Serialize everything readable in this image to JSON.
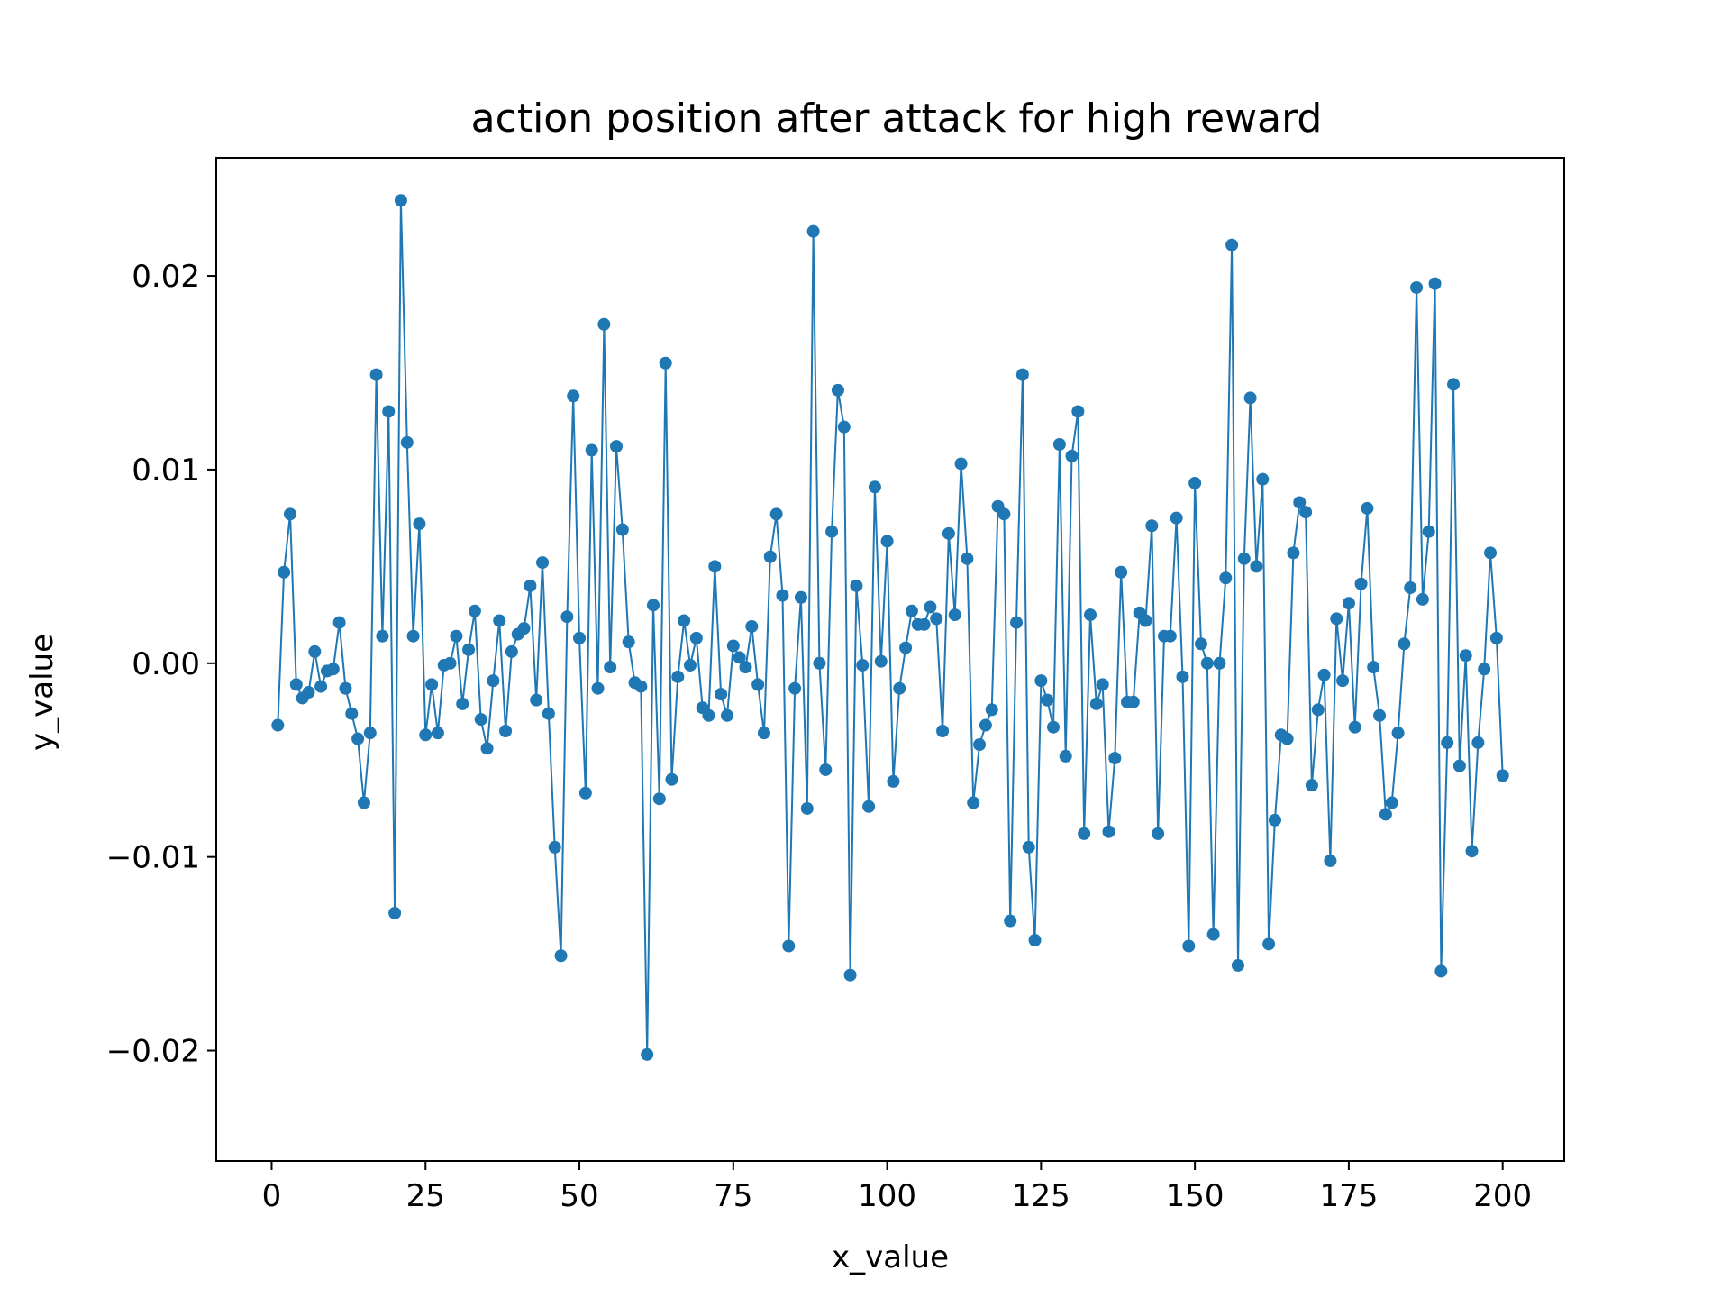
{
  "chart_data": {
    "type": "line",
    "title": "action position after attack for high reward",
    "xlabel": "x_value",
    "ylabel": "y_value",
    "xlim": [
      -9,
      210
    ],
    "ylim": [
      -0.0257,
      0.0261
    ],
    "xticks": [
      0,
      25,
      50,
      75,
      100,
      125,
      150,
      175,
      200
    ],
    "xtick_labels": [
      "0",
      "25",
      "50",
      "75",
      "100",
      "125",
      "150",
      "175",
      "200"
    ],
    "yticks": [
      -0.02,
      -0.01,
      0.0,
      0.01,
      0.02
    ],
    "ytick_labels": [
      "−0.02",
      "−0.01",
      "0.00",
      "0.01",
      "0.02"
    ],
    "grid": false,
    "legend": "none",
    "line_color": "#1f77b4",
    "marker": "circle",
    "x": [
      1,
      2,
      3,
      4,
      5,
      6,
      7,
      8,
      9,
      10,
      11,
      12,
      13,
      14,
      15,
      16,
      17,
      18,
      19,
      20,
      21,
      22,
      23,
      24,
      25,
      26,
      27,
      28,
      29,
      30,
      31,
      32,
      33,
      34,
      35,
      36,
      37,
      38,
      39,
      40,
      41,
      42,
      43,
      44,
      45,
      46,
      47,
      48,
      49,
      50,
      51,
      52,
      53,
      54,
      55,
      56,
      57,
      58,
      59,
      60,
      61,
      62,
      63,
      64,
      65,
      66,
      67,
      68,
      69,
      70,
      71,
      72,
      73,
      74,
      75,
      76,
      77,
      78,
      79,
      80,
      81,
      82,
      83,
      84,
      85,
      86,
      87,
      88,
      89,
      90,
      91,
      92,
      93,
      94,
      95,
      96,
      97,
      98,
      99,
      100,
      101,
      102,
      103,
      104,
      105,
      106,
      107,
      108,
      109,
      110,
      111,
      112,
      113,
      114,
      115,
      116,
      117,
      118,
      119,
      120,
      121,
      122,
      123,
      124,
      125,
      126,
      127,
      128,
      129,
      130,
      131,
      132,
      133,
      134,
      135,
      136,
      137,
      138,
      139,
      140,
      141,
      142,
      143,
      144,
      145,
      146,
      147,
      148,
      149,
      150,
      151,
      152,
      153,
      154,
      155,
      156,
      157,
      158,
      159,
      160,
      161,
      162,
      163,
      164,
      165,
      166,
      167,
      168,
      169,
      170,
      171,
      172,
      173,
      174,
      175,
      176,
      177,
      178,
      179,
      180,
      181,
      182,
      183,
      184,
      185,
      186,
      187,
      188,
      189,
      190,
      191,
      192,
      193,
      194,
      195,
      196,
      197,
      198,
      199,
      200
    ],
    "y": [
      -0.0032,
      0.0047,
      0.0077,
      -0.0011,
      -0.0018,
      -0.0015,
      0.0006,
      -0.0012,
      -0.0004,
      -0.0003,
      0.0021,
      -0.0013,
      -0.0026,
      -0.0039,
      -0.0072,
      -0.0036,
      0.0149,
      0.0014,
      0.013,
      -0.0129,
      0.0239,
      0.0114,
      0.0014,
      0.0072,
      -0.0037,
      -0.0011,
      -0.0036,
      -0.0001,
      0.0,
      0.0014,
      -0.0021,
      0.0007,
      0.0027,
      -0.0029,
      -0.0044,
      -0.0009,
      0.0022,
      -0.0035,
      0.0006,
      0.0015,
      0.0018,
      0.004,
      -0.0019,
      0.0052,
      -0.0026,
      -0.0095,
      -0.0151,
      0.0024,
      0.0138,
      0.0013,
      -0.0067,
      0.011,
      -0.0013,
      0.0175,
      -0.0002,
      0.0112,
      0.0069,
      0.0011,
      -0.001,
      -0.0012,
      -0.0202,
      0.003,
      -0.007,
      0.0155,
      -0.006,
      -0.0007,
      0.0022,
      -0.0001,
      0.0013,
      -0.0023,
      -0.0027,
      0.005,
      -0.0016,
      -0.0027,
      0.0009,
      0.0003,
      -0.0002,
      0.0019,
      -0.0011,
      -0.0036,
      0.0055,
      0.0077,
      0.0035,
      -0.0146,
      -0.0013,
      0.0034,
      -0.0075,
      0.0223,
      0.0,
      -0.0055,
      0.0068,
      0.0141,
      0.0122,
      -0.0161,
      0.004,
      -0.0001,
      -0.0074,
      0.0091,
      0.0001,
      0.0063,
      -0.0061,
      -0.0013,
      0.0008,
      0.0027,
      0.002,
      0.002,
      0.0029,
      0.0023,
      -0.0035,
      0.0067,
      0.0025,
      0.0103,
      0.0054,
      -0.0072,
      -0.0042,
      -0.0032,
      -0.0024,
      0.0081,
      0.0077,
      -0.0133,
      0.0021,
      0.0149,
      -0.0095,
      -0.0143,
      -0.0009,
      -0.0019,
      -0.0033,
      0.0113,
      -0.0048,
      0.0107,
      0.013,
      -0.0088,
      0.0025,
      -0.0021,
      -0.0011,
      -0.0087,
      -0.0049,
      0.0047,
      -0.002,
      -0.002,
      0.0026,
      0.0022,
      0.0071,
      -0.0088,
      0.0014,
      0.0014,
      0.0075,
      -0.0007,
      -0.0146,
      0.0093,
      0.001,
      0.0,
      -0.014,
      0.0,
      0.0044,
      0.0216,
      -0.0156,
      0.0054,
      0.0137,
      0.005,
      0.0095,
      -0.0145,
      -0.0081,
      -0.0037,
      -0.0039,
      0.0057,
      0.0083,
      0.0078,
      -0.0063,
      -0.0024,
      -0.0006,
      -0.0102,
      0.0023,
      -0.0009,
      0.0031,
      -0.0033,
      0.0041,
      0.008,
      -0.0002,
      -0.0027,
      -0.0078,
      -0.0072,
      -0.0036,
      0.001,
      0.0039,
      0.0194,
      0.0033,
      0.0068,
      0.0196,
      -0.0159,
      -0.0041,
      0.0144,
      -0.0053,
      0.0004,
      -0.0097,
      -0.0041,
      -0.0003,
      0.0057,
      0.0013,
      -0.0058
    ]
  }
}
